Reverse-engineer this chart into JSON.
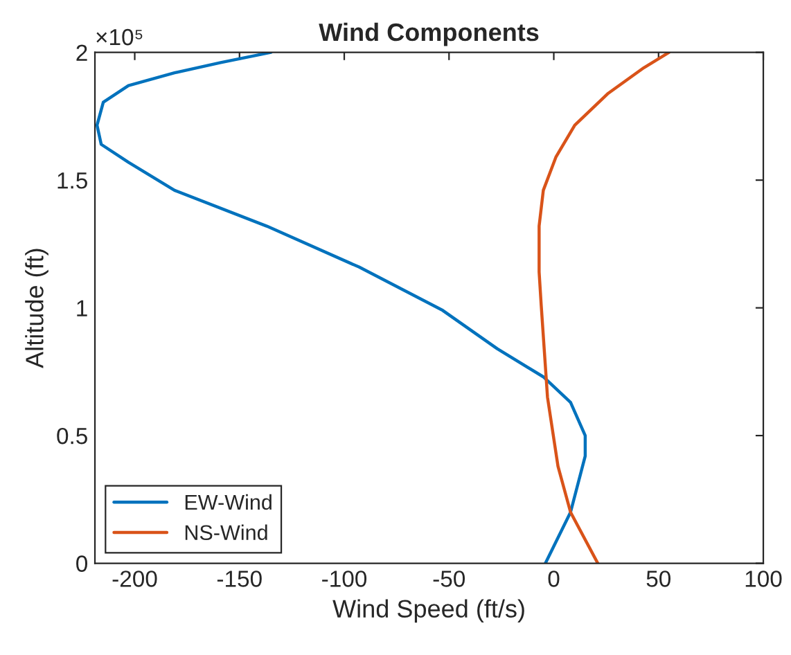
{
  "chart_data": {
    "type": "line",
    "title": "Wind Components",
    "xlabel": "Wind Speed (ft/s)",
    "ylabel": "Altitude (ft)",
    "annotations": [
      "×10⁵"
    ],
    "xlim": [
      -219,
      100
    ],
    "xticks": [
      -200,
      -150,
      -100,
      -50,
      0,
      50,
      100
    ],
    "ylim": [
      0,
      2
    ],
    "yticks": [
      0,
      0.5,
      1,
      1.5,
      2
    ],
    "grid": false,
    "legend": "bottom left",
    "marker": "none",
    "line_style": "solid",
    "series": [
      {
        "name": "EW-Wind",
        "color": "#0072bd",
        "x": [
          -4,
          8,
          15,
          15,
          8,
          -5,
          -27,
          -53,
          -93,
          -137,
          -181,
          -203,
          -216,
          -218,
          -215,
          -203,
          -181,
          -159,
          -135
        ],
        "values": [
          0,
          0.2,
          0.42,
          0.5,
          0.63,
          0.73,
          0.84,
          0.99,
          1.16,
          1.32,
          1.46,
          1.57,
          1.64,
          1.715,
          1.805,
          1.87,
          1.92,
          1.96,
          2
        ]
      },
      {
        "name": "NS-Wind",
        "color": "#d95319",
        "x": [
          21,
          8,
          2,
          -3,
          -6,
          -7,
          -7,
          -5,
          1,
          10,
          26,
          43,
          55
        ],
        "values": [
          0,
          0.2,
          0.38,
          0.65,
          1.01,
          1.14,
          1.32,
          1.46,
          1.59,
          1.715,
          1.84,
          1.94,
          2
        ]
      }
    ]
  }
}
